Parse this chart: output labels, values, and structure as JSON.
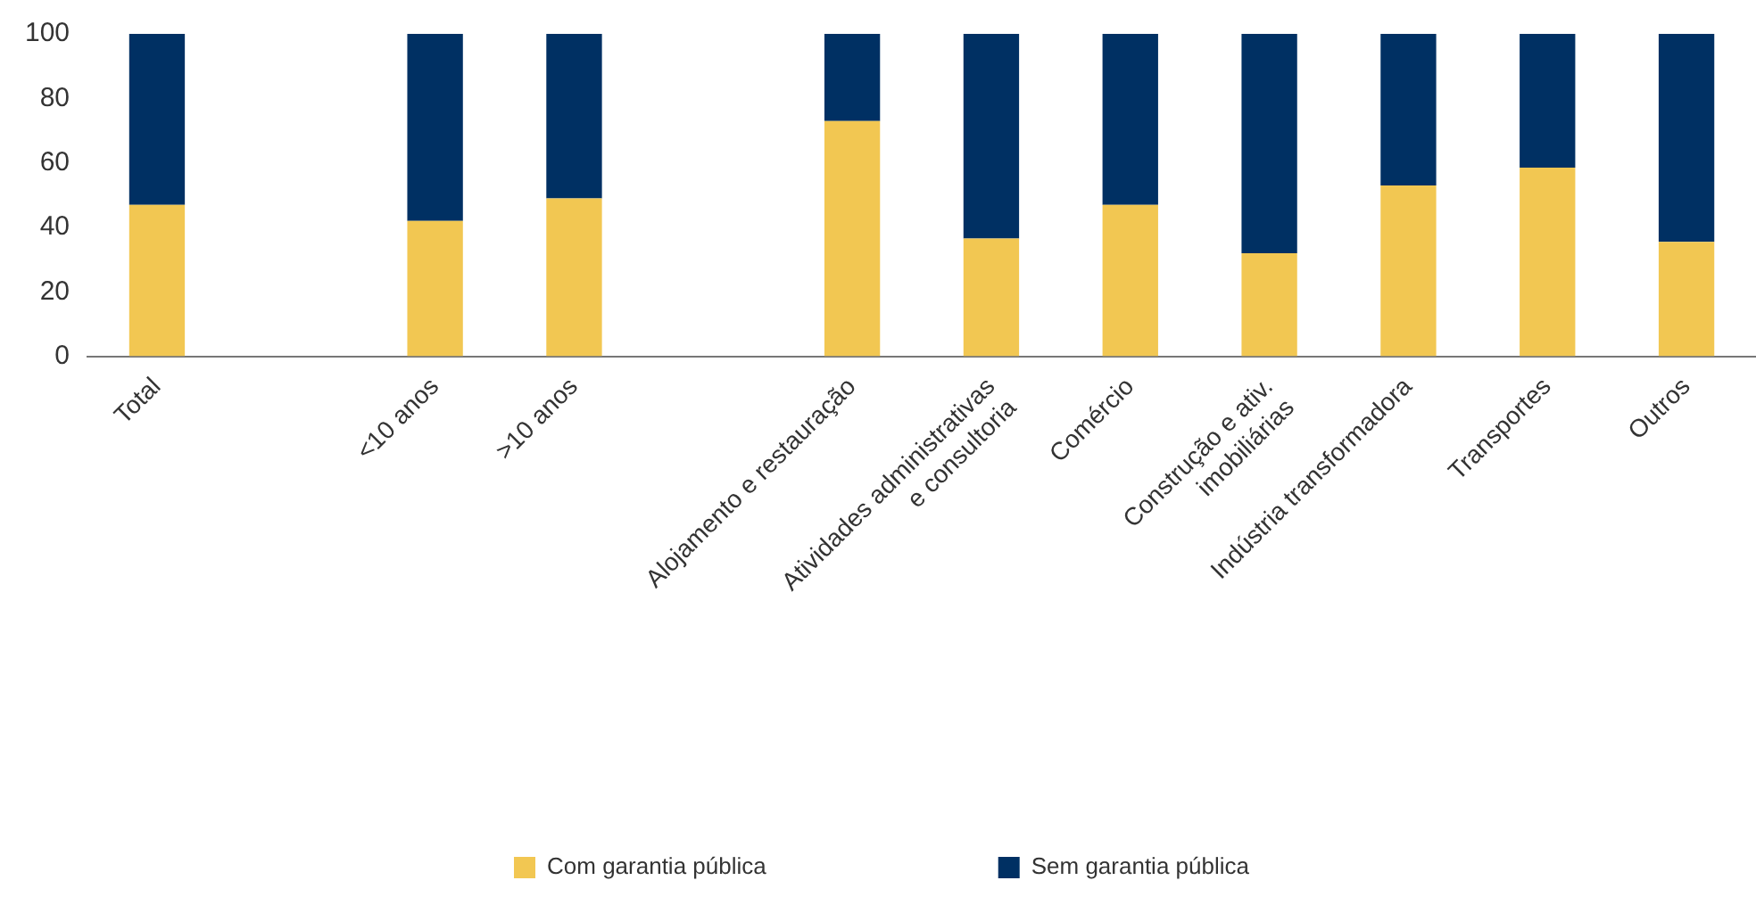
{
  "chart_data": {
    "type": "bar",
    "stacked": true,
    "categories": [
      "Total",
      null,
      "<10 anos",
      ">10 anos",
      null,
      "Alojamento e restauração",
      "Atividades administrativas\ne consultoria",
      "Comércio",
      "Construção e ativ.\nimobiliárias",
      "Indústria transformadora",
      "Transportes",
      "Outros"
    ],
    "series": [
      {
        "name": "Com garantia pública",
        "color": "#f2c752",
        "values": [
          47,
          null,
          42,
          49,
          null,
          73,
          36.5,
          47,
          32,
          53,
          58.5,
          35.5
        ]
      },
      {
        "name": "Sem garantia pública",
        "color": "#003063",
        "values": [
          53,
          null,
          58,
          51,
          null,
          27,
          63.5,
          53,
          68,
          47,
          41.5,
          64.5
        ]
      }
    ],
    "ylim": [
      0,
      100
    ],
    "yticks": [
      0,
      20,
      40,
      60,
      80,
      100
    ],
    "grid": false,
    "legend": "bottom"
  }
}
